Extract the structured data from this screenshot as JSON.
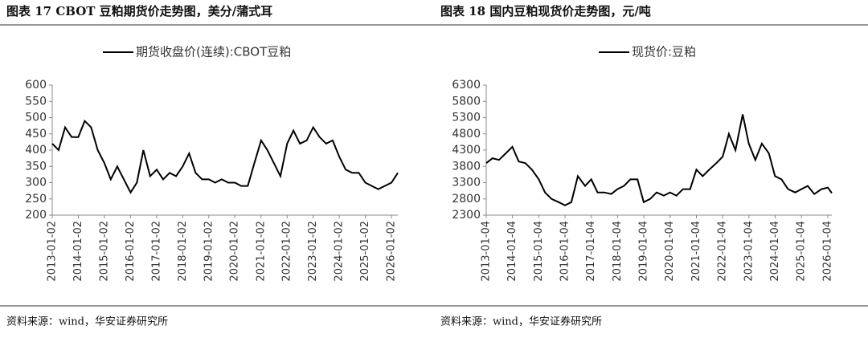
{
  "chart_data": [
    {
      "type": "line",
      "title": "图表 17 CBOT 豆粕期货价走势图，美分/蒲式耳",
      "source": "资料来源：wind，华安证券研究所",
      "x": [
        "2013-01-02",
        "2013-04-01",
        "2013-07-01",
        "2013-10-01",
        "2014-01-02",
        "2014-04-01",
        "2014-07-01",
        "2014-10-01",
        "2015-01-02",
        "2015-04-01",
        "2015-07-01",
        "2015-10-01",
        "2016-01-04",
        "2016-04-01",
        "2016-07-01",
        "2016-10-03",
        "2017-01-03",
        "2017-04-03",
        "2017-07-03",
        "2017-10-02",
        "2018-01-02",
        "2018-04-02",
        "2018-07-02",
        "2018-10-01",
        "2019-01-02",
        "2019-04-01",
        "2019-07-01",
        "2019-10-01",
        "2020-01-02",
        "2020-04-01",
        "2020-07-01",
        "2020-10-01",
        "2021-01-04",
        "2021-04-01",
        "2021-07-01",
        "2021-10-01",
        "2022-01-03",
        "2022-04-01",
        "2022-07-01",
        "2022-10-03",
        "2023-01-03",
        "2023-04-03",
        "2023-07-03",
        "2023-10-02",
        "2024-01-02",
        "2024-04-01",
        "2024-07-01",
        "2024-10-01",
        "2025-01-02",
        "2025-04-01",
        "2025-07-01",
        "2025-10-01",
        "2026-01-02",
        "2026-04-01"
      ],
      "series": [
        {
          "name": "期货收盘价(连续):CBOT豆粕",
          "color": "#000000",
          "values": [
            420,
            400,
            470,
            440,
            440,
            490,
            470,
            400,
            360,
            310,
            350,
            310,
            270,
            300,
            400,
            320,
            340,
            310,
            330,
            320,
            350,
            390,
            330,
            310,
            310,
            300,
            310,
            300,
            300,
            290,
            290,
            360,
            430,
            400,
            360,
            320,
            420,
            460,
            420,
            430,
            470,
            440,
            420,
            430,
            380,
            340,
            330,
            330,
            300,
            290,
            280,
            290,
            300,
            330
          ]
        }
      ],
      "xlim": [
        "2013-01-02",
        "2026-04-01"
      ],
      "xticks": [
        "2013-01-02",
        "2014-01-02",
        "2015-01-02",
        "2016-01-02",
        "2017-01-02",
        "2018-01-02",
        "2019-01-02",
        "2020-01-02",
        "2021-01-02",
        "2022-01-02",
        "2023-01-02",
        "2024-01-02",
        "2025-01-02",
        "2026-01-02"
      ],
      "ylim": [
        200,
        600
      ],
      "yticks": [
        200,
        250,
        300,
        350,
        400,
        450,
        500,
        550,
        600
      ]
    },
    {
      "type": "line",
      "title": "图表 18 国内豆粕现货价走势图，元/吨",
      "source": "资料来源：wind，华安证券研究所",
      "x": [
        "2013-01-04",
        "2013-04-01",
        "2013-07-01",
        "2013-10-01",
        "2014-01-02",
        "2014-04-01",
        "2014-07-01",
        "2014-10-01",
        "2015-01-05",
        "2015-04-01",
        "2015-07-01",
        "2015-10-08",
        "2016-01-04",
        "2016-04-01",
        "2016-07-01",
        "2016-10-10",
        "2017-01-03",
        "2017-04-01",
        "2017-07-03",
        "2017-10-09",
        "2018-01-02",
        "2018-04-02",
        "2018-07-02",
        "2018-10-08",
        "2019-01-02",
        "2019-04-01",
        "2019-07-01",
        "2019-10-08",
        "2020-01-02",
        "2020-04-01",
        "2020-07-01",
        "2020-10-09",
        "2021-01-04",
        "2021-04-01",
        "2021-07-01",
        "2021-10-08",
        "2022-01-04",
        "2022-04-01",
        "2022-07-01",
        "2022-10-10",
        "2023-01-03",
        "2023-04-03",
        "2023-07-03",
        "2023-10-09",
        "2024-01-02",
        "2024-04-01",
        "2024-07-01",
        "2024-10-08",
        "2025-01-02",
        "2025-04-01",
        "2025-07-01",
        "2025-10-09",
        "2026-01-05",
        "2026-03-02"
      ],
      "series": [
        {
          "name": "现货价:豆粕",
          "color": "#000000",
          "values": [
            3900,
            4050,
            4000,
            4200,
            4400,
            3950,
            3900,
            3700,
            3400,
            3000,
            2800,
            2700,
            2600,
            2700,
            3500,
            3200,
            3400,
            3000,
            3000,
            2950,
            3100,
            3200,
            3400,
            3400,
            2700,
            2800,
            3000,
            2900,
            3000,
            2900,
            3100,
            3100,
            3700,
            3500,
            3700,
            3900,
            4100,
            4800,
            4300,
            5400,
            4500,
            4000,
            4500,
            4200,
            3500,
            3400,
            3100,
            3000,
            3100,
            3200,
            2950,
            3100,
            3150,
            2980
          ]
        }
      ],
      "xlim": [
        "2013-01-04",
        "2026-03-02"
      ],
      "xticks": [
        "2013-01-04",
        "2014-01-04",
        "2015-01-04",
        "2016-01-04",
        "2017-01-04",
        "2018-01-04",
        "2019-01-04",
        "2020-01-04",
        "2021-01-04",
        "2022-01-04",
        "2023-01-04",
        "2024-01-04",
        "2025-01-04",
        "2026-01-04"
      ],
      "ylim": [
        2300,
        6300
      ],
      "yticks": [
        2300,
        2800,
        3300,
        3800,
        4300,
        4800,
        5300,
        5800,
        6300
      ]
    }
  ]
}
